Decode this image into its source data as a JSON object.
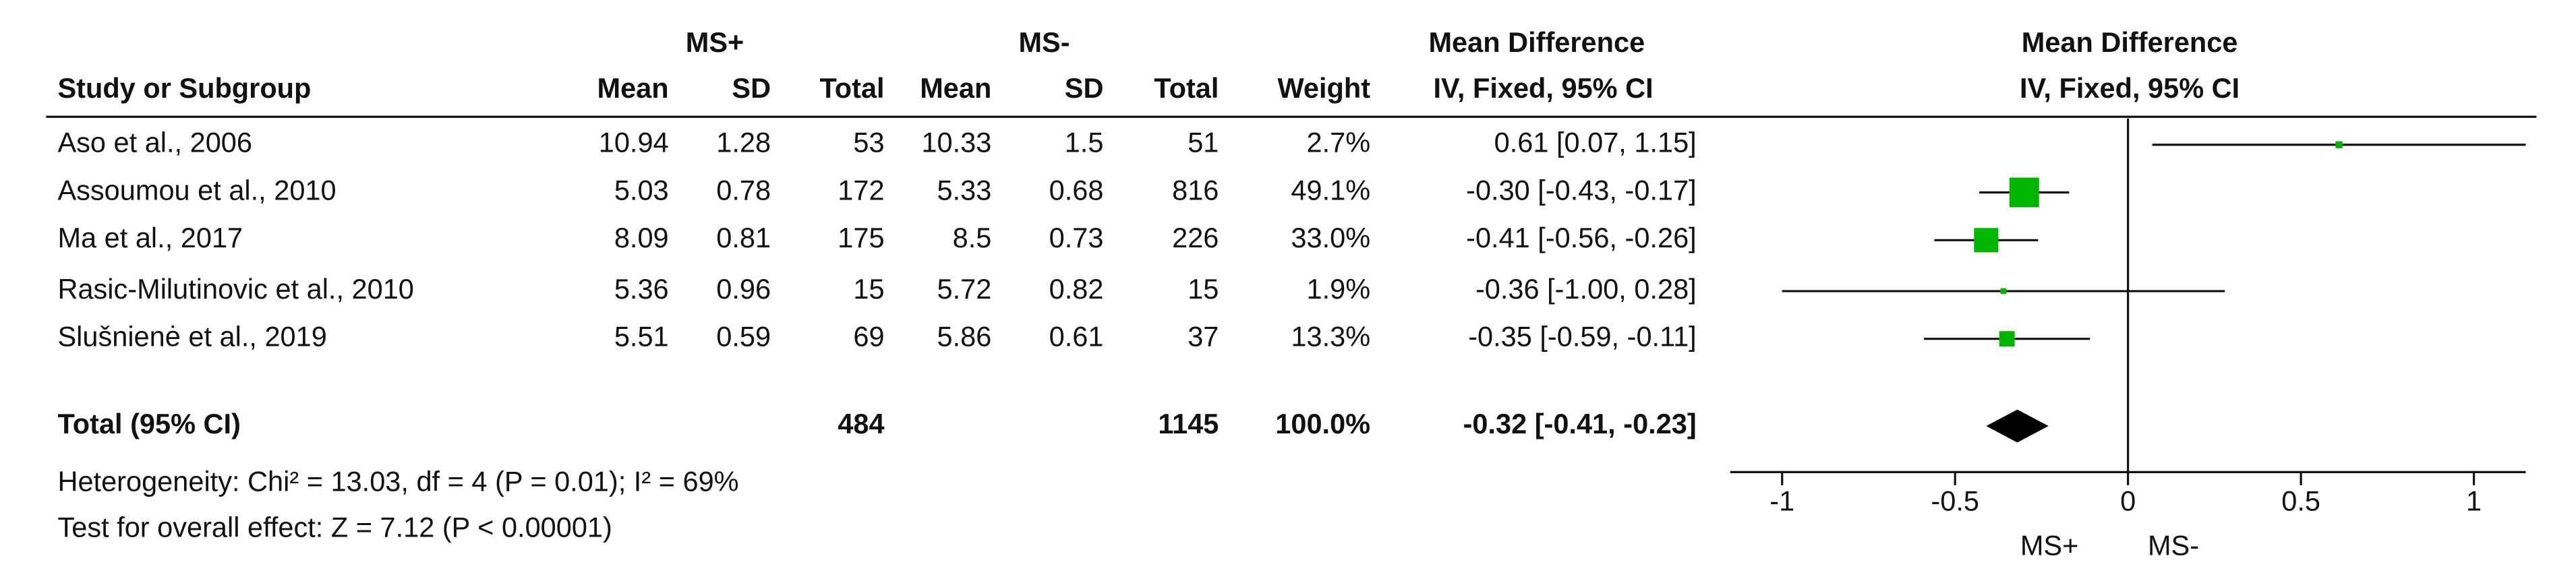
{
  "chart_data": {
    "type": "forest",
    "group_headers": [
      "MS+",
      "MS-"
    ],
    "columns": [
      "Study or Subgroup",
      "Mean",
      "SD",
      "Total",
      "Mean",
      "SD",
      "Total",
      "Weight"
    ],
    "effect_header": "Mean Difference",
    "effect_subheader": "IV, Fixed, 95% CI",
    "categories": [
      "Aso et al., 2006",
      "Assoumou et al., 2010",
      "Ma et al., 2017",
      "Rasic-Milutinovic et al., 2010",
      "Slušnienė et al., 2019"
    ],
    "table": [
      [
        10.94,
        1.28,
        53,
        10.33,
        1.5,
        51
      ],
      [
        5.03,
        0.78,
        172,
        5.33,
        0.68,
        816
      ],
      [
        8.09,
        0.81,
        175,
        8.5,
        0.73,
        226
      ],
      [
        5.36,
        0.96,
        15,
        5.72,
        0.82,
        15
      ],
      [
        5.51,
        0.59,
        69,
        5.86,
        0.61,
        37
      ]
    ],
    "weights": [
      2.7,
      49.1,
      33.0,
      1.9,
      13.3
    ],
    "weight_labels": [
      "2.7%",
      "49.1%",
      "33.0%",
      "1.9%",
      "13.3%"
    ],
    "values": [
      0.61,
      -0.3,
      -0.41,
      -0.36,
      -0.35
    ],
    "ci_low": [
      0.07,
      -0.43,
      -0.56,
      -1.0,
      -0.59
    ],
    "ci_high": [
      1.15,
      -0.17,
      -0.26,
      0.28,
      -0.11
    ],
    "value_labels": [
      "0.61 [0.07, 1.15]",
      "-0.30 [-0.43, -0.17]",
      "-0.41 [-0.56, -0.26]",
      "-0.36 [-1.00, 0.28]",
      "-0.35 [-0.59, -0.11]"
    ],
    "color": "#00b400",
    "total": {
      "label": "Total (95% CI)",
      "n1": 484,
      "n2": 1145,
      "weight_label": "100.0%",
      "value": -0.32,
      "ci_low": -0.41,
      "ci_high": -0.23,
      "value_label": "-0.32 [-0.41, -0.23]"
    },
    "footnotes": [
      "Heterogeneity: Chi² = 13.03, df = 4 (P = 0.01); I² = 69%",
      "Test for overall effect: Z = 7.12 (P < 0.00001)"
    ],
    "xlim": [
      -1.15,
      1.15
    ],
    "xticks": [
      -1,
      -0.5,
      0,
      0.5,
      1
    ],
    "axis_labels": [
      "MS+",
      "MS-"
    ]
  }
}
